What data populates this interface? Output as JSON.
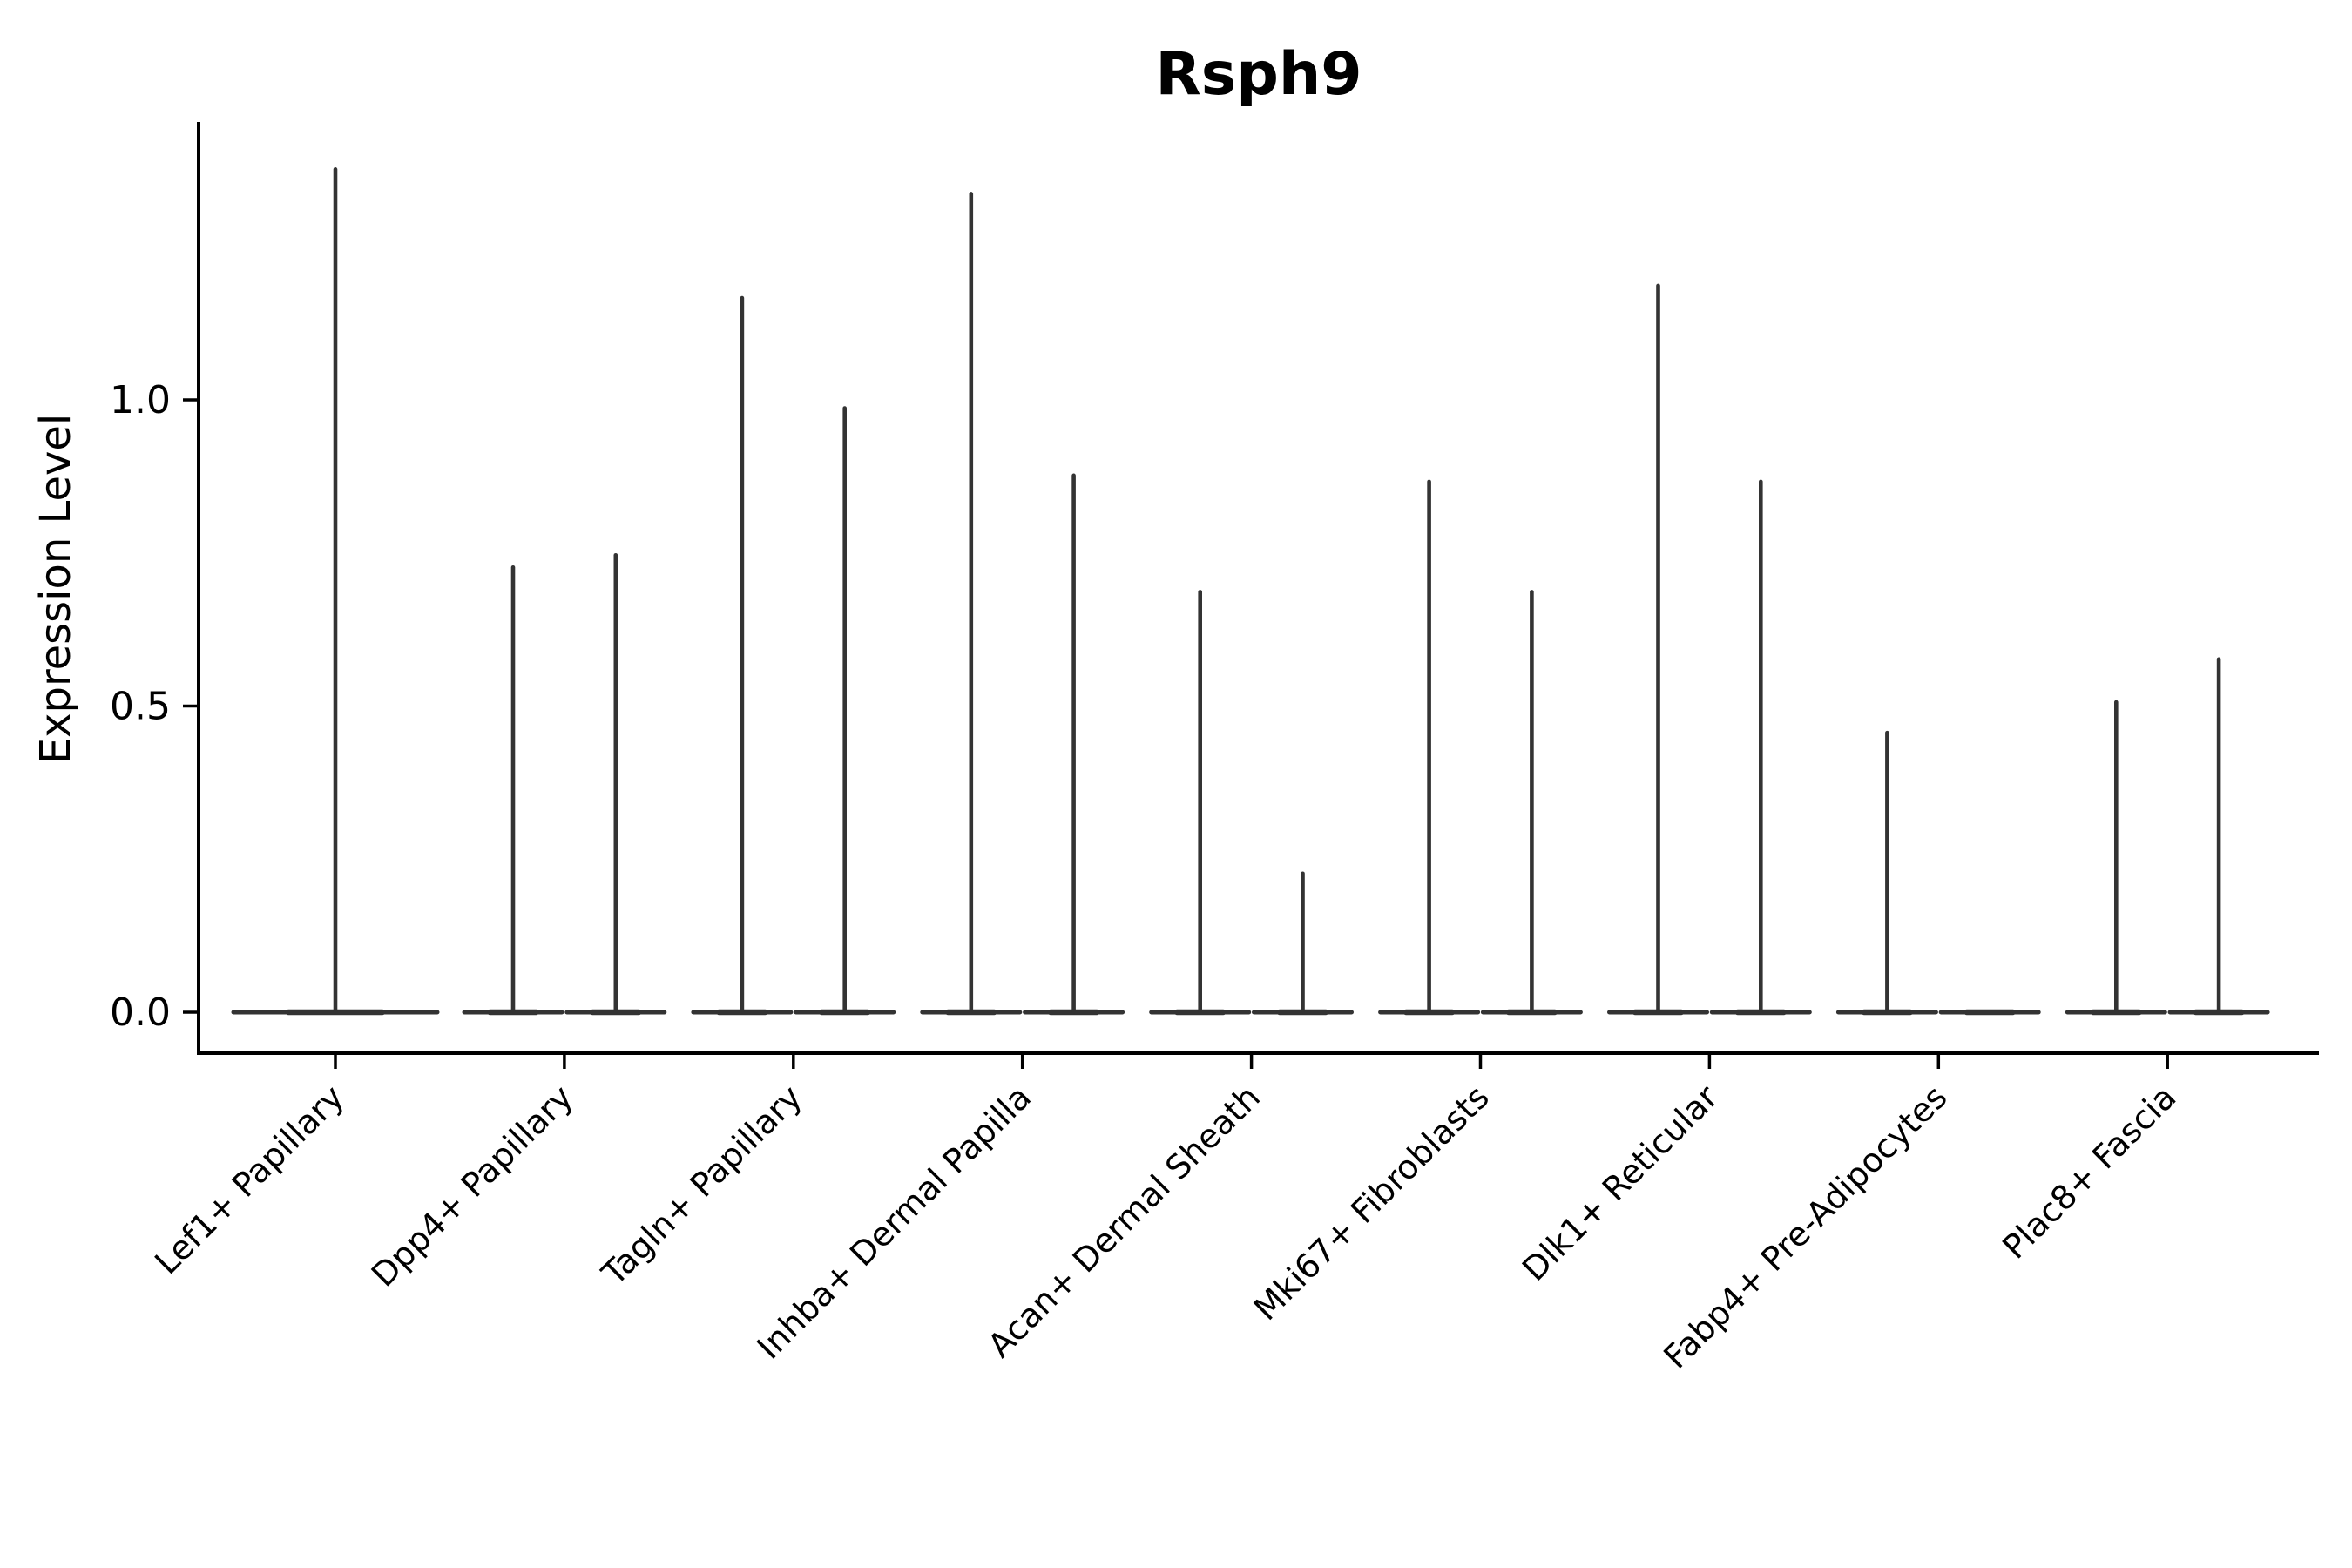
{
  "chart_data": {
    "type": "violin",
    "title": "Rsph9",
    "xlabel": "",
    "ylabel": "Expression Level",
    "ytick_labels": [
      "0.0",
      "0.5",
      "1.0"
    ],
    "ytick_values": [
      0.0,
      0.5,
      1.0
    ],
    "ylim": [
      -0.07,
      1.45
    ],
    "grid": "off",
    "legend": "none",
    "style": {
      "violin_color": "#333333",
      "axis_color": "#000000",
      "text_color": "#000000",
      "background": "#ffffff"
    },
    "categories": [
      "Lef1+ Papillary",
      "Dpp4+ Papillary",
      "Tagln+ Papillary",
      "Inhba+ Dermal Papilla",
      "Acan+ Dermal Sheath",
      "Mki67+ Fibroblasts",
      "Dlk1+ Reticular",
      "Fabp4+ Pre-Adipocytes",
      "Plac8+ Fascia"
    ],
    "groups": [
      {
        "category": "Lef1+ Papillary",
        "violins": [
          {
            "position": "center",
            "max_expression": 1.38
          }
        ]
      },
      {
        "category": "Dpp4+ Papillary",
        "violins": [
          {
            "position": "left",
            "max_expression": 0.73
          },
          {
            "position": "right",
            "max_expression": 0.75
          }
        ]
      },
      {
        "category": "Tagln+ Papillary",
        "violins": [
          {
            "position": "left",
            "max_expression": 1.17
          },
          {
            "position": "right",
            "max_expression": 0.99
          }
        ]
      },
      {
        "category": "Inhba+ Dermal Papilla",
        "violins": [
          {
            "position": "left",
            "max_expression": 1.34
          },
          {
            "position": "right",
            "max_expression": 0.88
          }
        ]
      },
      {
        "category": "Acan+ Dermal Sheath",
        "violins": [
          {
            "position": "left",
            "max_expression": 0.69
          },
          {
            "position": "right",
            "max_expression": 0.23
          }
        ]
      },
      {
        "category": "Mki67+ Fibroblasts",
        "violins": [
          {
            "position": "left",
            "max_expression": 0.87
          },
          {
            "position": "right",
            "max_expression": 0.69
          }
        ]
      },
      {
        "category": "Dlk1+ Reticular",
        "violins": [
          {
            "position": "left",
            "max_expression": 1.19
          },
          {
            "position": "right",
            "max_expression": 0.87
          }
        ]
      },
      {
        "category": "Fabp4+ Pre-Adipocytes",
        "violins": [
          {
            "position": "left",
            "max_expression": 0.46
          },
          {
            "position": "right",
            "max_expression": 0.0
          }
        ]
      },
      {
        "category": "Plac8+ Fascia",
        "violins": [
          {
            "position": "left",
            "max_expression": 0.51
          },
          {
            "position": "right",
            "max_expression": 0.58
          }
        ]
      }
    ]
  }
}
